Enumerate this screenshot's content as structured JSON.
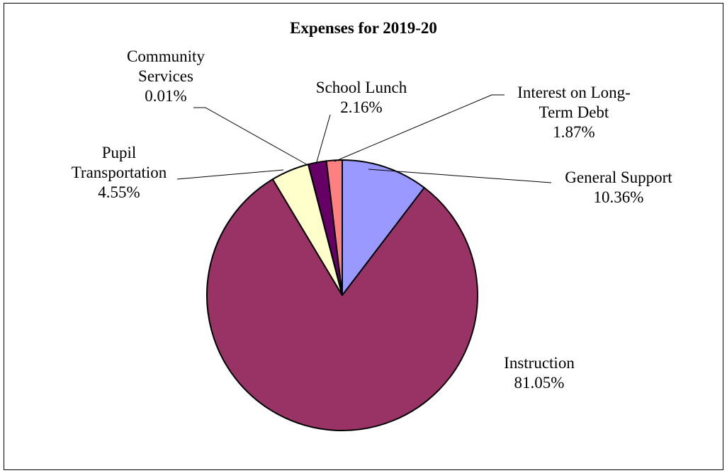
{
  "chart_data": {
    "type": "pie",
    "title": "Expenses for 2019-20",
    "slices": [
      {
        "name": "General Support",
        "value": 10.36,
        "label_lines": [
          "General Support",
          "10.36%"
        ],
        "color": "#9999ff"
      },
      {
        "name": "Instruction",
        "value": 81.05,
        "label_lines": [
          "Instruction",
          "81.05%"
        ],
        "color": "#993366"
      },
      {
        "name": "Pupil Transportation",
        "value": 4.55,
        "label_lines": [
          "Pupil",
          "Transportation",
          "4.55%"
        ],
        "color": "#ffffcc"
      },
      {
        "name": "Community Services",
        "value": 0.01,
        "label_lines": [
          "Community",
          "Services",
          "0.01%"
        ],
        "color": "#ccffff"
      },
      {
        "name": "School Lunch",
        "value": 2.16,
        "label_lines": [
          "School Lunch",
          "2.16%"
        ],
        "color": "#660066"
      },
      {
        "name": "Interest on Long-Term Debt",
        "value": 1.87,
        "label_lines": [
          "Interest on Long-",
          "Term Debt",
          "1.87%"
        ],
        "color": "#ff8080"
      }
    ],
    "legend": "none"
  }
}
